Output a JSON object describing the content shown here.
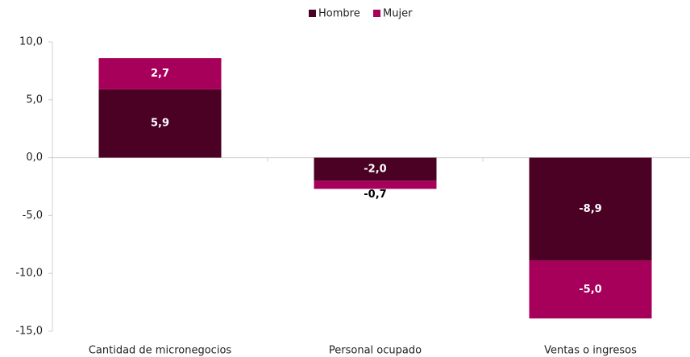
{
  "chart_data": {
    "type": "stacked_bar",
    "categories": [
      "Cantidad de micronegocios",
      "Personal ocupado",
      "Ventas o ingresos"
    ],
    "series": [
      {
        "name": "Hombre",
        "color": "#4a0124",
        "values": [
          5.9,
          -2.0,
          -8.9
        ],
        "value_labels": [
          "5,9",
          "-2,0",
          "-8,9"
        ]
      },
      {
        "name": "Mujer",
        "color": "#a7005a",
        "values": [
          2.7,
          -0.7,
          -5.0
        ],
        "value_labels": [
          "2,7",
          "-0,7",
          "-5,0"
        ]
      }
    ],
    "ylim": [
      -15,
      10
    ],
    "yticks": [
      {
        "value": -15,
        "label": "-15,0"
      },
      {
        "value": -10,
        "label": "-10,0"
      },
      {
        "value": -5,
        "label": "-5,0"
      },
      {
        "value": 0,
        "label": "0,0"
      },
      {
        "value": 5,
        "label": "5,0"
      },
      {
        "value": 10,
        "label": "10,0"
      }
    ],
    "legend": "top"
  }
}
